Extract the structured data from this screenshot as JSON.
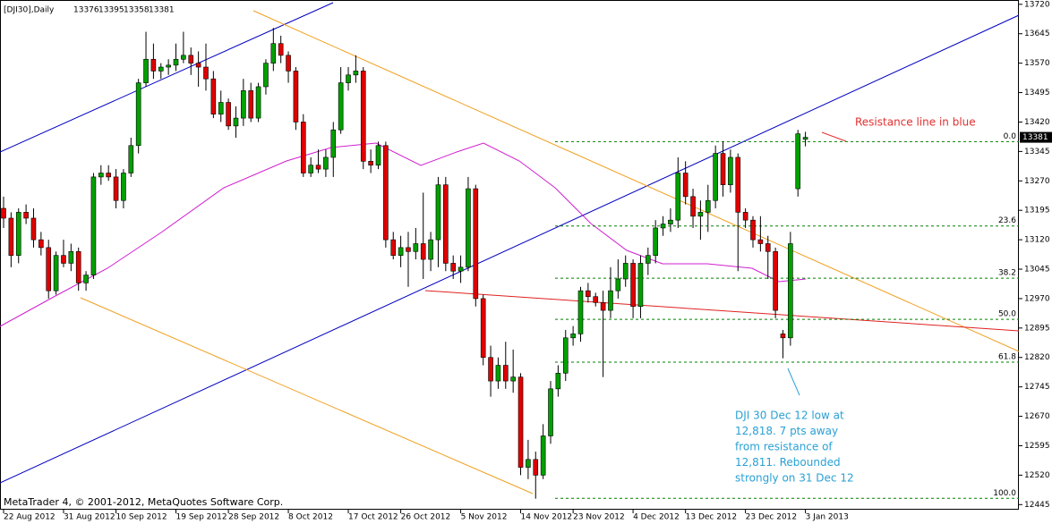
{
  "chart_data": {
    "type": "candlestick",
    "title": "[DJI30],Daily",
    "header_values": [
      13376,
      13395,
      13358,
      13381
    ],
    "footer": "MetaTrader 4, © 2001-2012, MetaQuotes Software Corp.",
    "ylim": [
      12432,
      13731
    ],
    "yticks": [
      13720,
      13645,
      13570,
      13495,
      13420,
      13345,
      13270,
      13195,
      13120,
      13045,
      12970,
      12895,
      12820,
      12745,
      12670,
      12595,
      12520,
      12445
    ],
    "current_price": 13381,
    "up_color": "#00a000",
    "down_color": "#e00000",
    "categories": [
      "22 Aug 2012",
      null,
      null,
      null,
      null,
      null,
      null,
      null,
      "31 Aug 2012",
      null,
      null,
      null,
      null,
      null,
      null,
      "10 Sep 2012",
      null,
      null,
      null,
      null,
      null,
      null,
      null,
      "19 Sep 2012",
      null,
      null,
      null,
      null,
      null,
      null,
      "28 Sep 2012",
      null,
      null,
      null,
      null,
      null,
      null,
      null,
      "8 Oct 2012",
      null,
      null,
      null,
      null,
      null,
      null,
      null,
      "17 Oct 2012",
      null,
      null,
      null,
      null,
      null,
      null,
      "26 Oct 2012",
      null,
      null,
      null,
      null,
      null,
      null,
      null,
      "5 Nov 2012",
      null,
      null,
      null,
      null,
      null,
      null,
      null,
      "14 Nov 2012",
      null,
      null,
      null,
      null,
      null,
      null,
      "23 Nov 2012",
      null,
      null,
      null,
      null,
      null,
      null,
      null,
      "4 Dec 2012",
      null,
      null,
      null,
      null,
      null,
      null,
      "13 Dec 2012",
      null,
      null,
      null,
      null,
      null,
      null,
      null,
      "23 Dec 2012",
      null,
      null,
      null,
      null,
      null,
      null,
      null,
      "3 Jan 2013"
    ],
    "open": [
      13200,
      13175,
      13080,
      13190,
      13175,
      13120,
      13100,
      12990,
      13080,
      13060,
      13090,
      13010,
      13030,
      13280,
      13290,
      13280,
      13220,
      13290,
      13360,
      13520,
      13580,
      13550,
      13560,
      13565,
      13580,
      13590,
      13570,
      13560,
      13530,
      13440,
      13470,
      13410,
      13430,
      13500,
      13430,
      13510,
      13570,
      13620,
      13590,
      13550,
      13420,
      13290,
      13310,
      13300,
      13330,
      13400,
      13520,
      13540,
      13550,
      13320,
      13310,
      13360,
      13120,
      13080,
      13100,
      13090,
      13110,
      13070,
      13120,
      13260,
      13060,
      13040,
      13050,
      13250,
      12970,
      12820,
      12760,
      12800,
      12760,
      12770,
      12540,
      12560,
      12520,
      12620,
      12740,
      12780,
      12870,
      12880,
      12990,
      12975,
      12960,
      12940,
      12990,
      13020,
      13060,
      12950,
      13060,
      13080,
      13150,
      13160,
      13170,
      13290,
      13230,
      13180,
      13190,
      13220,
      13340,
      13260,
      13330,
      13190,
      13170,
      13120,
      13110,
      13090,
      12880,
      12870,
      13250,
      13376
    ],
    "high": [
      13230,
      13190,
      13200,
      13210,
      13200,
      13140,
      13120,
      13090,
      13120,
      13110,
      13100,
      13040,
      13290,
      13310,
      13310,
      13300,
      13300,
      13380,
      13530,
      13650,
      13620,
      13570,
      13580,
      13620,
      13650,
      13610,
      13600,
      13620,
      13550,
      13500,
      13480,
      13460,
      13530,
      13520,
      13520,
      13580,
      13660,
      13640,
      13600,
      13560,
      13440,
      13330,
      13350,
      13350,
      13420,
      13560,
      13560,
      13590,
      13560,
      13350,
      13370,
      13370,
      13140,
      13130,
      13140,
      13150,
      13240,
      13140,
      13280,
      13280,
      13080,
      13080,
      13280,
      13260,
      12980,
      12850,
      12820,
      12860,
      12840,
      12780,
      12610,
      12580,
      12650,
      12760,
      12800,
      12890,
      12900,
      13000,
      13010,
      12985,
      12990,
      13050,
      13070,
      13080,
      13070,
      13080,
      13100,
      13170,
      13180,
      13200,
      13330,
      13320,
      13250,
      13220,
      13260,
      13360,
      13370,
      13350,
      13340,
      13200,
      13180,
      13180,
      13130,
      13100,
      12890,
      13140,
      13400,
      13395
    ],
    "low": [
      13150,
      13050,
      13060,
      13160,
      13100,
      13080,
      12970,
      12980,
      13050,
      13040,
      12990,
      12990,
      13020,
      13260,
      13270,
      13200,
      13200,
      13280,
      13340,
      13510,
      13530,
      13530,
      13540,
      13550,
      13570,
      13540,
      13510,
      13500,
      13430,
      13420,
      13400,
      13380,
      13410,
      13420,
      13420,
      13490,
      13550,
      13570,
      13520,
      13400,
      13280,
      13280,
      13290,
      13280,
      13280,
      13390,
      13500,
      13520,
      13300,
      13290,
      13300,
      13100,
      13070,
      13050,
      13000,
      13070,
      13020,
      13040,
      13050,
      13040,
      13020,
      13010,
      13040,
      12950,
      12800,
      12720,
      12740,
      12740,
      12730,
      12520,
      12510,
      12460,
      12510,
      12600,
      12720,
      12760,
      12850,
      12860,
      12960,
      12950,
      12770,
      12920,
      12970,
      13000,
      12920,
      12920,
      13030,
      13060,
      13130,
      13140,
      13150,
      13210,
      13150,
      13120,
      13140,
      13200,
      13230,
      13240,
      13040,
      13150,
      13100,
      13090,
      13020,
      12920,
      12818,
      12850,
      13230,
      13358
    ],
    "close": [
      13175,
      13080,
      13190,
      13175,
      13120,
      13100,
      12990,
      13080,
      13060,
      13090,
      13010,
      13030,
      13280,
      13290,
      13280,
      13220,
      13290,
      13360,
      13520,
      13580,
      13550,
      13560,
      13565,
      13580,
      13590,
      13570,
      13560,
      13530,
      13440,
      13470,
      13410,
      13430,
      13500,
      13430,
      13510,
      13570,
      13620,
      13590,
      13550,
      13420,
      13290,
      13310,
      13300,
      13330,
      13400,
      13520,
      13540,
      13550,
      13320,
      13310,
      13360,
      13120,
      13080,
      13100,
      13090,
      13110,
      13070,
      13120,
      13260,
      13060,
      13040,
      13050,
      13250,
      12970,
      12820,
      12760,
      12800,
      12760,
      12770,
      12540,
      12560,
      12520,
      12620,
      12740,
      12780,
      12870,
      12880,
      12990,
      12975,
      12960,
      12940,
      12990,
      13020,
      13060,
      12950,
      13060,
      13080,
      13150,
      13160,
      13170,
      13290,
      13230,
      13180,
      13190,
      13220,
      13340,
      13260,
      13330,
      13190,
      13170,
      13120,
      13110,
      13090,
      12940,
      12870,
      13110,
      13390,
      13381
    ],
    "fib_levels": [
      {
        "label": "0.0",
        "price": 13370
      },
      {
        "label": "23.6",
        "price": 13155
      },
      {
        "label": "38.2",
        "price": 13022
      },
      {
        "label": "50.0",
        "price": 12917
      },
      {
        "label": "61.8",
        "price": 12808
      },
      {
        "label": "100.0",
        "price": 12461
      }
    ],
    "annotations": {
      "resistance": "Resistance line in blue",
      "note": [
        "DJI 30 Dec 12 low at",
        "12,818. 7 pts away",
        "from resistance of",
        "12,811. Rebounded",
        "strongly on 31 Dec 12"
      ]
    }
  }
}
